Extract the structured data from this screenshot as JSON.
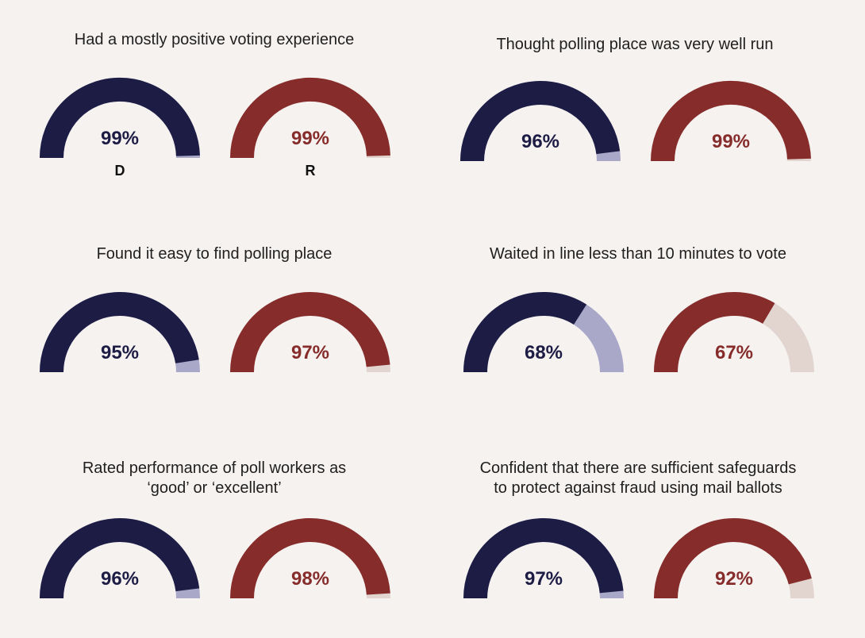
{
  "legend_labels": {
    "dem": "D",
    "rep": "R"
  },
  "colors": {
    "dem": "#1d1c44",
    "dem_rest": "#a9a8c8",
    "rep": "#862c2b",
    "rep_rest": "#e2d5d0",
    "background": "#f5f2f0"
  },
  "chart_data": {
    "type": "gauge",
    "series_names": [
      "D",
      "R"
    ],
    "panels": [
      {
        "title": "Had a mostly positive voting experience",
        "values": [
          99,
          99
        ],
        "labels": [
          "99%",
          "99%"
        ]
      },
      {
        "title": "Thought polling place was very well run",
        "values": [
          96,
          99
        ],
        "labels": [
          "96%",
          "99%"
        ]
      },
      {
        "title": "Found it easy to find polling place",
        "values": [
          95,
          97
        ],
        "labels": [
          "95%",
          "97%"
        ]
      },
      {
        "title": "Waited in line less than 10 minutes to vote",
        "values": [
          68,
          67
        ],
        "labels": [
          "68%",
          "67%"
        ]
      },
      {
        "title": "Rated performance of poll workers as\n‘good’ or ‘excellent’",
        "values": [
          96,
          98
        ],
        "labels": [
          "96%",
          "98%"
        ]
      },
      {
        "title": "Confident that there are sufficient safeguards\nto protect against fraud using mail ballots",
        "values": [
          97,
          92
        ],
        "labels": [
          "97%",
          "92%"
        ]
      }
    ]
  }
}
